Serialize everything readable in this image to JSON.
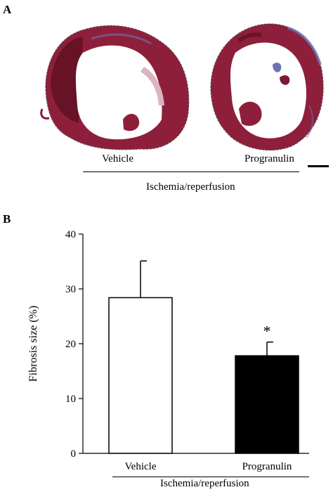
{
  "panel_a": {
    "label": "A",
    "left_caption": "Vehicle",
    "right_caption": "Progranulin",
    "group_caption": "Ischemia/reperfusion",
    "stain_colors": {
      "tissue": "#8e1f3b",
      "dark_tissue": "#5e1020",
      "fibrosis": "#6f73b5",
      "pale": "#d9b5c4"
    }
  },
  "panel_b": {
    "label": "B",
    "group_caption": "Ischemia/reperfusion"
  },
  "chart_data": {
    "type": "bar",
    "ylabel": "Fibrosis size (%)",
    "xlabel": "",
    "ylim": [
      0,
      40
    ],
    "yticks": [
      0,
      10,
      20,
      30,
      40
    ],
    "ytick_labels": [
      "0",
      "10",
      "20",
      "30",
      "40"
    ],
    "categories": [
      "Vehicle",
      "Progranulin"
    ],
    "values": [
      28.4,
      17.8
    ],
    "errors": [
      6.7,
      2.5
    ],
    "bar_colors": [
      "#ffffff",
      "#000000"
    ],
    "annotations": [
      {
        "category": "Progranulin",
        "text": "*"
      }
    ],
    "grid": false
  }
}
